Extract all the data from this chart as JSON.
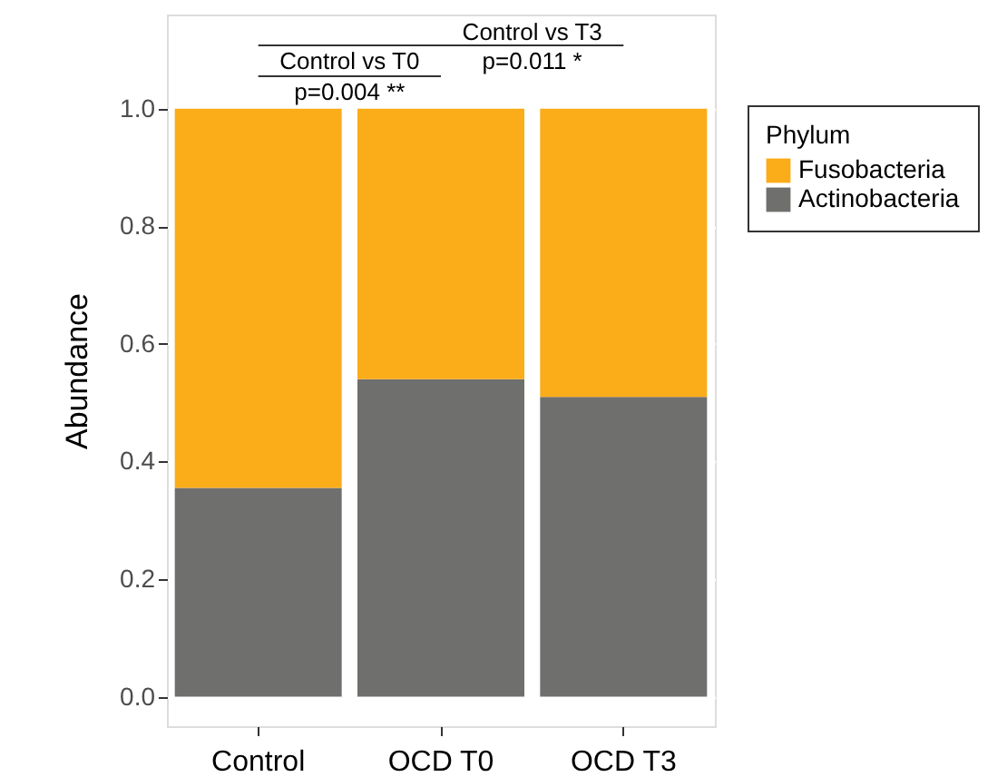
{
  "chart_data": {
    "type": "bar",
    "stacked": true,
    "ylabel": "Abundance",
    "legend_title": "Phylum",
    "legend": "right",
    "categories": [
      "Control",
      "OCD T0",
      "OCD T3"
    ],
    "series": [
      {
        "name": "Actinobacteria",
        "color": "#6f706e",
        "values": [
          0.355,
          0.54,
          0.51
        ]
      },
      {
        "name": "Fusobacteria",
        "color": "#fbac19",
        "values": [
          0.645,
          0.46,
          0.49
        ]
      }
    ],
    "ylim": [
      -0.05,
      1.16
    ],
    "yticks": [
      {
        "value": 0,
        "label": "0.0"
      },
      {
        "value": 0.2,
        "label": "0.2"
      },
      {
        "value": 0.4,
        "label": "0.4"
      },
      {
        "value": 0.6,
        "label": "0.6"
      },
      {
        "value": 0.8,
        "label": "0.8"
      },
      {
        "value": 1,
        "label": "1.0"
      }
    ],
    "grid": "y",
    "annotations": [
      "Control vs T3",
      "Control vs T0",
      "p=0.004 **",
      "p=0.011 *"
    ]
  }
}
